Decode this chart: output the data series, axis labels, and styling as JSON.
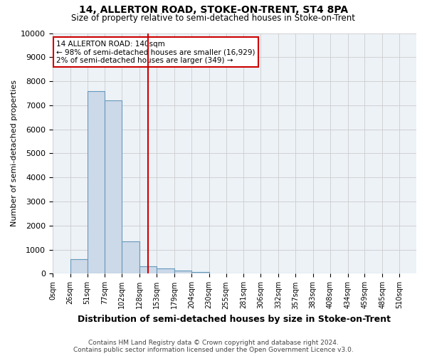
{
  "title": "14, ALLERTON ROAD, STOKE-ON-TRENT, ST4 8PA",
  "subtitle": "Size of property relative to semi-detached houses in Stoke-on-Trent",
  "xlabel": "Distribution of semi-detached houses by size in Stoke-on-Trent",
  "ylabel": "Number of semi-detached properties",
  "footer_line1": "Contains HM Land Registry data © Crown copyright and database right 2024.",
  "footer_line2": "Contains public sector information licensed under the Open Government Licence v3.0.",
  "bin_labels": [
    "0sqm",
    "26sqm",
    "51sqm",
    "77sqm",
    "102sqm",
    "128sqm",
    "153sqm",
    "179sqm",
    "204sqm",
    "230sqm",
    "255sqm",
    "281sqm",
    "306sqm",
    "332sqm",
    "357sqm",
    "383sqm",
    "408sqm",
    "434sqm",
    "459sqm",
    "485sqm",
    "510sqm"
  ],
  "bin_positions": [
    0,
    26,
    51,
    77,
    102,
    128,
    153,
    179,
    204,
    230,
    255,
    281,
    306,
    332,
    357,
    383,
    408,
    434,
    459,
    485,
    510
  ],
  "bar_values": [
    0,
    600,
    7600,
    7200,
    1350,
    300,
    230,
    130,
    80,
    0,
    0,
    0,
    0,
    0,
    0,
    0,
    0,
    0,
    0,
    0
  ],
  "bar_color": "#ccd9e8",
  "bar_edge_color": "#6699bb",
  "bar_edge_width": 0.8,
  "grid_color": "#cccccc",
  "bg_color": "#edf2f7",
  "property_line_x": 140,
  "property_line_color": "#cc0000",
  "annotation_text_line1": "14 ALLERTON ROAD: 140sqm",
  "annotation_text_line2": "← 98% of semi-detached houses are smaller (16,929)",
  "annotation_text_line3": "2% of semi-detached houses are larger (349) →",
  "annotation_box_color": "#ffffff",
  "annotation_box_edge": "#cc0000",
  "ylim": [
    0,
    10000
  ],
  "yticks": [
    0,
    1000,
    2000,
    3000,
    4000,
    5000,
    6000,
    7000,
    8000,
    9000,
    10000
  ],
  "ytick_labels": [
    "0",
    "1000",
    "2000",
    "3000",
    "4000",
    "5000",
    "6000",
    "7000",
    "8000",
    "9000",
    "10000"
  ]
}
